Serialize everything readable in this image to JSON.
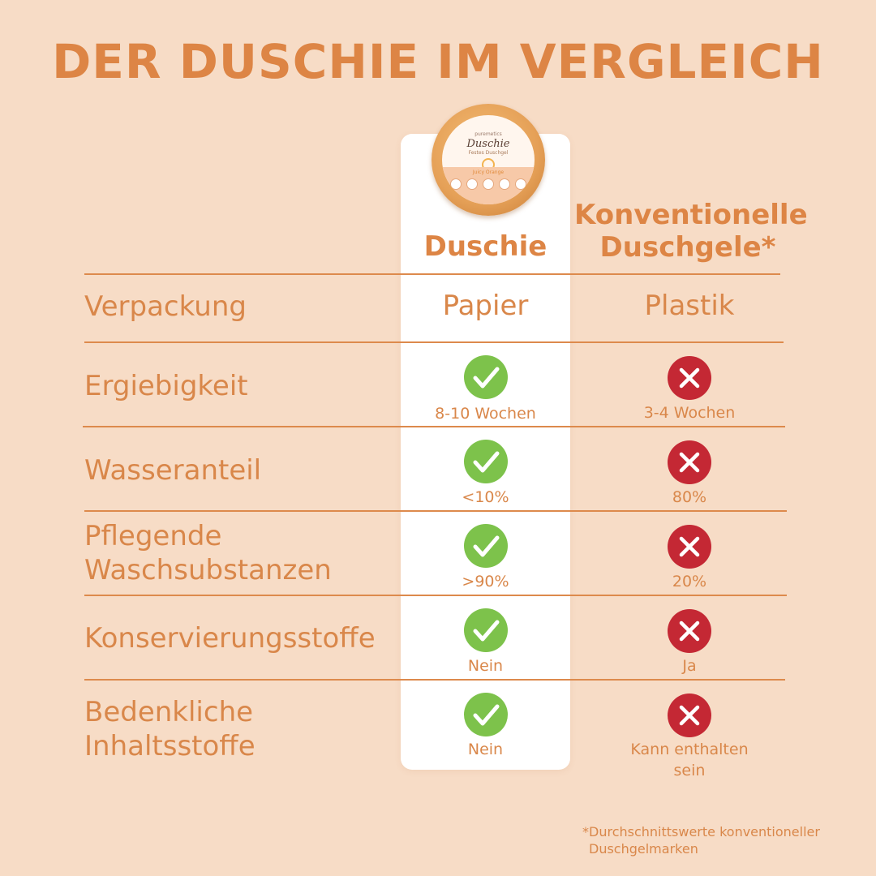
{
  "title": "DER DUSCHIE IM VERGLEICH",
  "product": {
    "brand": "puremetics",
    "name": "Duschie",
    "subtitle": "Festes Duschgel",
    "variant": "Juicy Orange"
  },
  "columns": {
    "duschie": "Duschie",
    "konventionell_line1": "Konventionelle",
    "konventionell_line2": "Duschgele*"
  },
  "rows": [
    {
      "label_lines": [
        "Verpackung"
      ],
      "duschie": "Papier",
      "konv": "Plastik"
    },
    {
      "label_lines": [
        "Ergiebigkeit"
      ],
      "duschie": "8-10 Wochen",
      "konv": "3-4 Wochen"
    },
    {
      "label_lines": [
        "Wasseranteil"
      ],
      "duschie": "<10%",
      "konv": "80%"
    },
    {
      "label_lines": [
        "Pflegende",
        "Waschsubstanzen"
      ],
      "duschie": ">90%",
      "konv": "20%"
    },
    {
      "label_lines": [
        "Konservierungsstoffe"
      ],
      "duschie": "Nein",
      "konv": "Ja"
    },
    {
      "label_lines": [
        "Bedenkliche",
        "Inhaltsstoffe"
      ],
      "duschie": "Nein",
      "konv_lines": [
        "Kann enthalten",
        "sein"
      ]
    }
  ],
  "marks": {
    "duschie": "check-icon",
    "konv": "cross-icon"
  },
  "colors": {
    "background": "#f7dcc6",
    "accent": "#dd8545",
    "check": "#7dc24b",
    "cross": "#c42834"
  },
  "footnote": {
    "line1": "*Durchschnittswerte konventioneller",
    "line2": "Duschgelmarken"
  }
}
